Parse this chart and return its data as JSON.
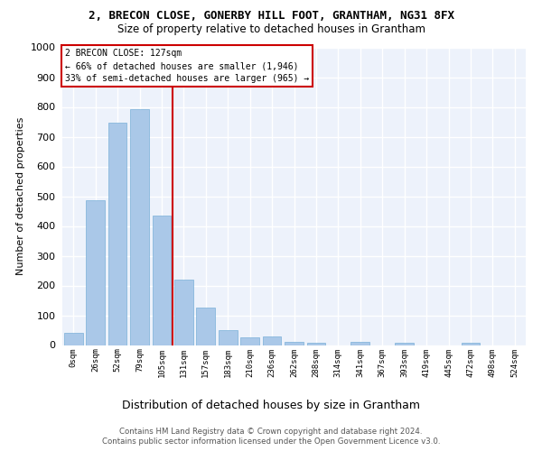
{
  "title1": "2, BRECON CLOSE, GONERBY HILL FOOT, GRANTHAM, NG31 8FX",
  "title2": "Size of property relative to detached houses in Grantham",
  "xlabel": "Distribution of detached houses by size in Grantham",
  "ylabel": "Number of detached properties",
  "categories": [
    "0sqm",
    "26sqm",
    "52sqm",
    "79sqm",
    "105sqm",
    "131sqm",
    "157sqm",
    "183sqm",
    "210sqm",
    "236sqm",
    "262sqm",
    "288sqm",
    "314sqm",
    "341sqm",
    "367sqm",
    "393sqm",
    "419sqm",
    "445sqm",
    "472sqm",
    "498sqm",
    "524sqm"
  ],
  "values": [
    40,
    487,
    748,
    792,
    435,
    220,
    127,
    50,
    25,
    28,
    10,
    8,
    0,
    10,
    0,
    8,
    0,
    0,
    8,
    0,
    0
  ],
  "bar_color": "#aac8e8",
  "bar_edge_color": "#7ab0d8",
  "vline_x": 4.5,
  "marker_label": "2 BRECON CLOSE: 127sqm",
  "annotation_line1": "← 66% of detached houses are smaller (1,946)",
  "annotation_line2": "33% of semi-detached houses are larger (965) →",
  "vline_color": "#cc0000",
  "box_edge_color": "#cc0000",
  "ylim": [
    0,
    1000
  ],
  "yticks": [
    0,
    100,
    200,
    300,
    400,
    500,
    600,
    700,
    800,
    900,
    1000
  ],
  "bg_color": "#edf2fb",
  "grid_color": "#ffffff",
  "footer1": "Contains HM Land Registry data © Crown copyright and database right 2024.",
  "footer2": "Contains public sector information licensed under the Open Government Licence v3.0."
}
